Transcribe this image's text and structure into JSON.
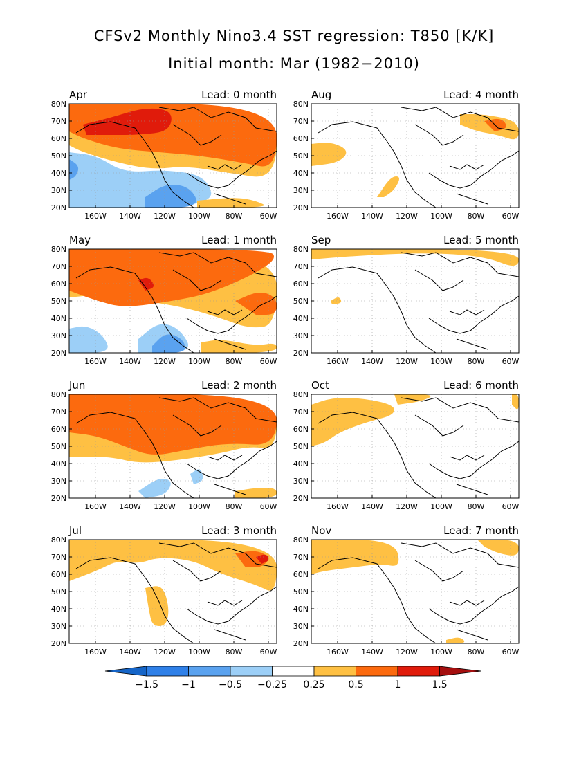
{
  "title": "CFSv2 Monthly Nino3.4 SST regression: T850 [K/K]",
  "subtitle": "Initial month: Mar (1982−2010)",
  "lat_labels": [
    "80N",
    "70N",
    "60N",
    "50N",
    "40N",
    "30N",
    "20N"
  ],
  "lon_labels": [
    "160W",
    "140W",
    "120W",
    "100W",
    "80W",
    "60W"
  ],
  "colors": {
    "neg_15": "#1565c8",
    "neg_1": "#2f80e8",
    "neg_05": "#5aa2ef",
    "neg_025": "#9ccff7",
    "pos_025": "#fec043",
    "pos_05": "#fc6a0e",
    "pos_1": "#e01b0b",
    "pos_15": "#a50f0f",
    "coast": "#000000",
    "grid": "#999999"
  },
  "panels": [
    {
      "month": "Apr",
      "lead": "Lead: 0 month"
    },
    {
      "month": "Aug",
      "lead": "Lead: 4 month"
    },
    {
      "month": "May",
      "lead": "Lead: 1 month"
    },
    {
      "month": "Sep",
      "lead": "Lead: 5 month"
    },
    {
      "month": "Jun",
      "lead": "Lead: 2 month"
    },
    {
      "month": "Oct",
      "lead": "Lead: 6 month"
    },
    {
      "month": "Jul",
      "lead": "Lead: 3 month"
    },
    {
      "month": "Nov",
      "lead": "Lead: 7 month"
    }
  ],
  "colorbar": {
    "labels": [
      "−1.5",
      "−1",
      "−0.5",
      "−0.25",
      "0.25",
      "0.5",
      "1",
      "1.5"
    ]
  }
}
